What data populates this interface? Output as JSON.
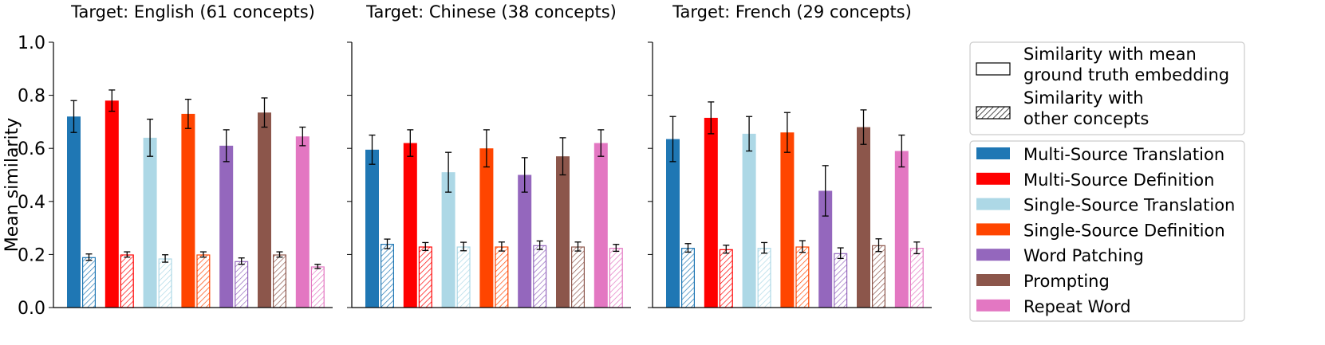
{
  "figure": {
    "ylabel": "Mean similarity",
    "legend_outline": [
      {
        "label_lines": [
          "Similarity with mean",
          "ground truth embedding"
        ],
        "pattern": "solid"
      },
      {
        "label_lines": [
          "Similarity with",
          "other concepts"
        ],
        "pattern": "hatch"
      }
    ],
    "colors": {
      "Multi-Source Translation": "#1f77b4",
      "Multi-Source Definition": "#ff0000",
      "Single-Source Translation": "#add8e6",
      "Single-Source Definition": "#ff4500",
      "Word Patching": "#9467bd",
      "Prompting": "#8c564b",
      "Repeat Word": "#e377c2"
    }
  },
  "chart_data": [
    {
      "type": "bar",
      "title": "Target: English (61 concepts)",
      "ylim": [
        0,
        1.0
      ],
      "yticks": [
        "0.0",
        "0.2",
        "0.4",
        "0.6",
        "0.8",
        "1.0"
      ],
      "categories": [
        "Multi-Source Translation",
        "Multi-Source Definition",
        "Single-Source Translation",
        "Single-Source Definition",
        "Word Patching",
        "Prompting",
        "Repeat Word"
      ],
      "series": [
        {
          "name": "Similarity with mean ground truth embedding",
          "values": [
            0.72,
            0.78,
            0.64,
            0.73,
            0.61,
            0.735,
            0.645
          ],
          "errors": [
            0.06,
            0.04,
            0.07,
            0.055,
            0.06,
            0.055,
            0.035
          ]
        },
        {
          "name": "Similarity with other concepts",
          "values": [
            0.19,
            0.2,
            0.185,
            0.2,
            0.175,
            0.2,
            0.155
          ],
          "errors": [
            0.012,
            0.01,
            0.014,
            0.01,
            0.012,
            0.01,
            0.008
          ]
        }
      ]
    },
    {
      "type": "bar",
      "title": "Target: Chinese (38 concepts)",
      "ylim": [
        0,
        1.0
      ],
      "categories": [
        "Multi-Source Translation",
        "Multi-Source Definition",
        "Single-Source Translation",
        "Single-Source Definition",
        "Word Patching",
        "Prompting",
        "Repeat Word"
      ],
      "series": [
        {
          "name": "Similarity with mean ground truth embedding",
          "values": [
            0.595,
            0.62,
            0.51,
            0.6,
            0.5,
            0.57,
            0.62
          ],
          "errors": [
            0.055,
            0.05,
            0.075,
            0.07,
            0.065,
            0.07,
            0.05
          ]
        },
        {
          "name": "Similarity with other concepts",
          "values": [
            0.24,
            0.23,
            0.23,
            0.23,
            0.235,
            0.23,
            0.225
          ],
          "errors": [
            0.018,
            0.015,
            0.016,
            0.017,
            0.016,
            0.017,
            0.013
          ]
        }
      ]
    },
    {
      "type": "bar",
      "title": "Target: French (29 concepts)",
      "ylim": [
        0,
        1.0
      ],
      "categories": [
        "Multi-Source Translation",
        "Multi-Source Definition",
        "Single-Source Translation",
        "Single-Source Definition",
        "Word Patching",
        "Prompting",
        "Repeat Word"
      ],
      "series": [
        {
          "name": "Similarity with mean ground truth embedding",
          "values": [
            0.635,
            0.715,
            0.655,
            0.66,
            0.44,
            0.68,
            0.59
          ],
          "errors": [
            0.085,
            0.06,
            0.065,
            0.075,
            0.095,
            0.065,
            0.06
          ]
        },
        {
          "name": "Similarity with other concepts",
          "values": [
            0.225,
            0.22,
            0.225,
            0.23,
            0.205,
            0.235,
            0.225
          ],
          "errors": [
            0.016,
            0.015,
            0.02,
            0.022,
            0.02,
            0.024,
            0.022
          ]
        }
      ]
    }
  ]
}
